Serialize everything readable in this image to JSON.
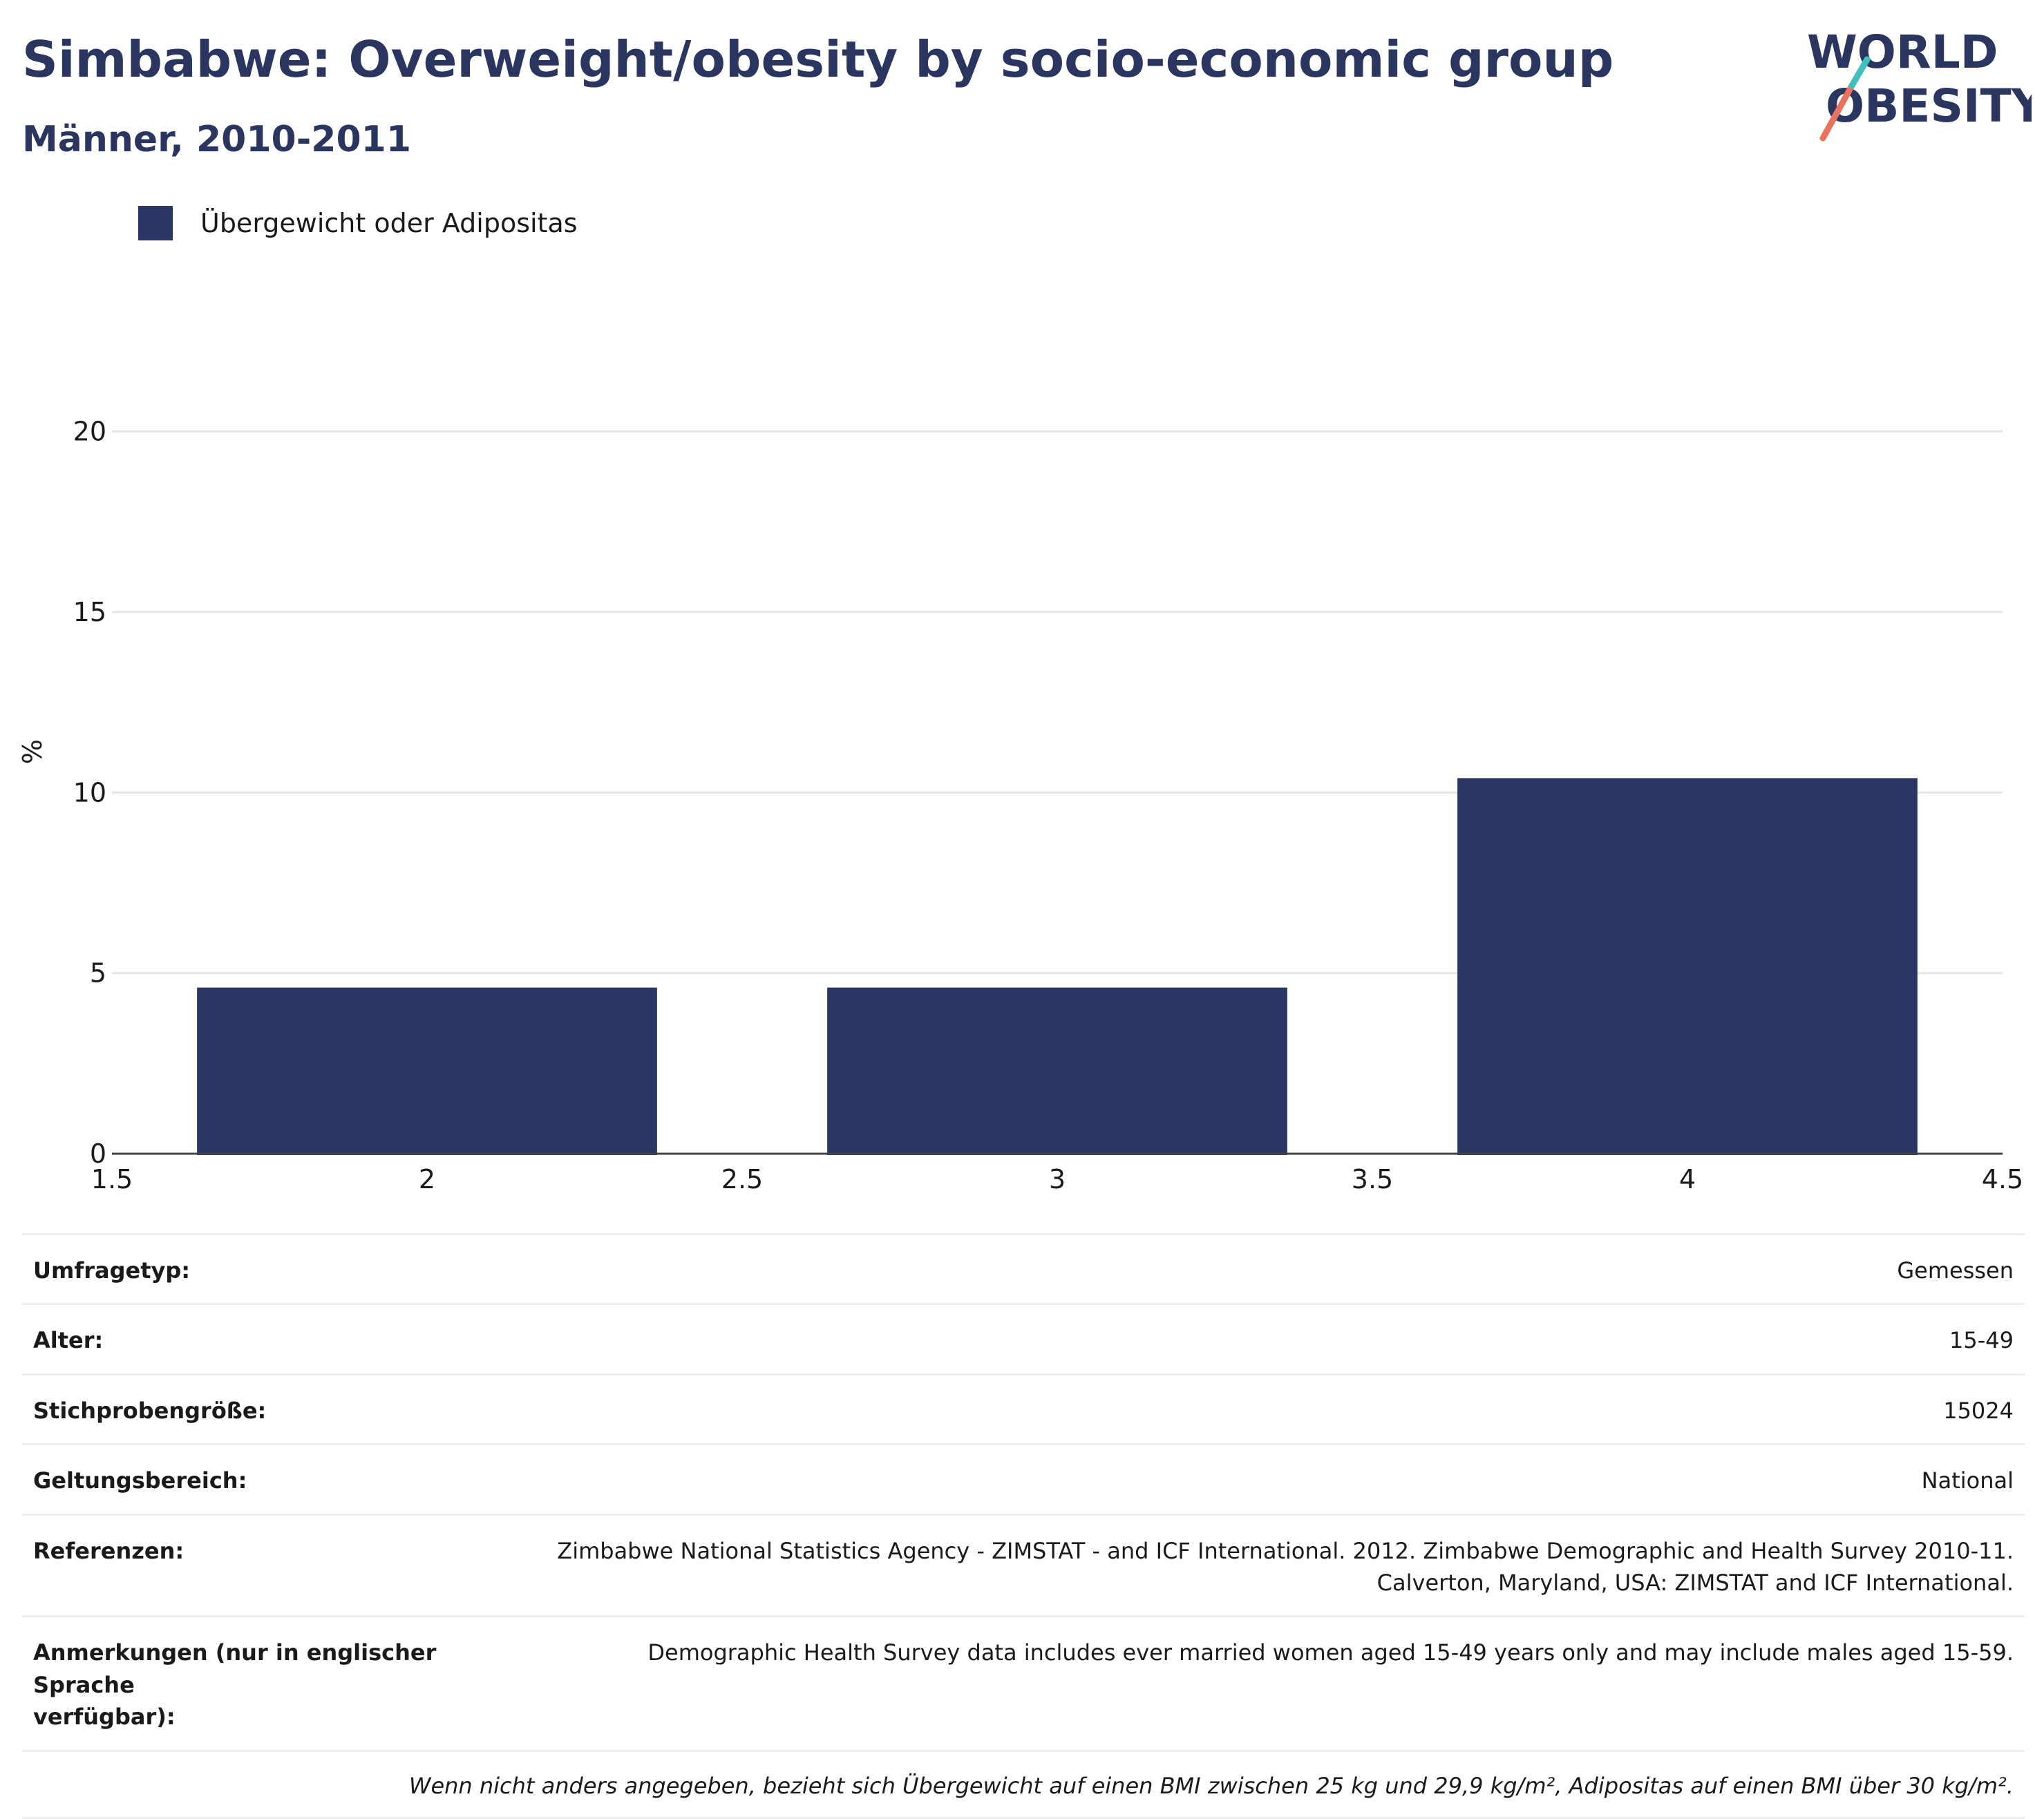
{
  "header": {
    "title": "Simbabwe: Overweight/obesity by socio-economic group",
    "subtitle": "Männer, 2010-2011"
  },
  "logo": {
    "line1": "WORLD",
    "line2": "OBESITY",
    "text_color": "#2a3560",
    "slash_colors": [
      "#e8735f",
      "#3fbfbf"
    ]
  },
  "legend": {
    "label": "Übergewicht oder Adipositas",
    "color": "#2a3663"
  },
  "chart_data": {
    "type": "bar",
    "title": "Simbabwe: Overweight/obesity by socio-economic group",
    "subtitle": "Männer, 2010-2011",
    "xlabel": "",
    "ylabel": "%",
    "x": [
      2,
      3,
      4
    ],
    "series": [
      {
        "name": "Übergewicht oder Adipositas",
        "values": [
          4.6,
          4.6,
          10.4
        ],
        "color": "#2a3663"
      }
    ],
    "xlim": [
      1.5,
      4.5
    ],
    "ylim": [
      0,
      22
    ],
    "x_ticks": [
      "1.5",
      "2",
      "2.5",
      "3",
      "3.5",
      "4",
      "4.5"
    ],
    "y_ticks": [
      "0",
      "5",
      "10",
      "15",
      "20"
    ],
    "grid": true,
    "legend_position": "top-left"
  },
  "info": {
    "rows": [
      {
        "label": "Umfragetyp:",
        "value": "Gemessen"
      },
      {
        "label": "Alter:",
        "value": "15-49"
      },
      {
        "label": "Stichprobengröße:",
        "value": "15024"
      },
      {
        "label": "Geltungsbereich:",
        "value": "National"
      },
      {
        "label": "Referenzen:",
        "value": "Zimbabwe National Statistics Agency - ZIMSTAT - and ICF International. 2012. Zimbabwe Demographic and Health Survey 2010-11.",
        "value2": "Calverton, Maryland, USA: ZIMSTAT and ICF International."
      },
      {
        "label": "Anmerkungen (nur in englischer Sprache",
        "label2": "verfügbar):",
        "value": "Demographic Health Survey data includes ever married women aged 15-49 years only and may include males aged 15-59."
      }
    ],
    "footnote": "Wenn nicht anders angegeben, bezieht sich Übergewicht auf einen BMI zwischen 25 kg und 29,9 kg/m², Adipositas auf einen BMI über 30 kg/m²."
  }
}
